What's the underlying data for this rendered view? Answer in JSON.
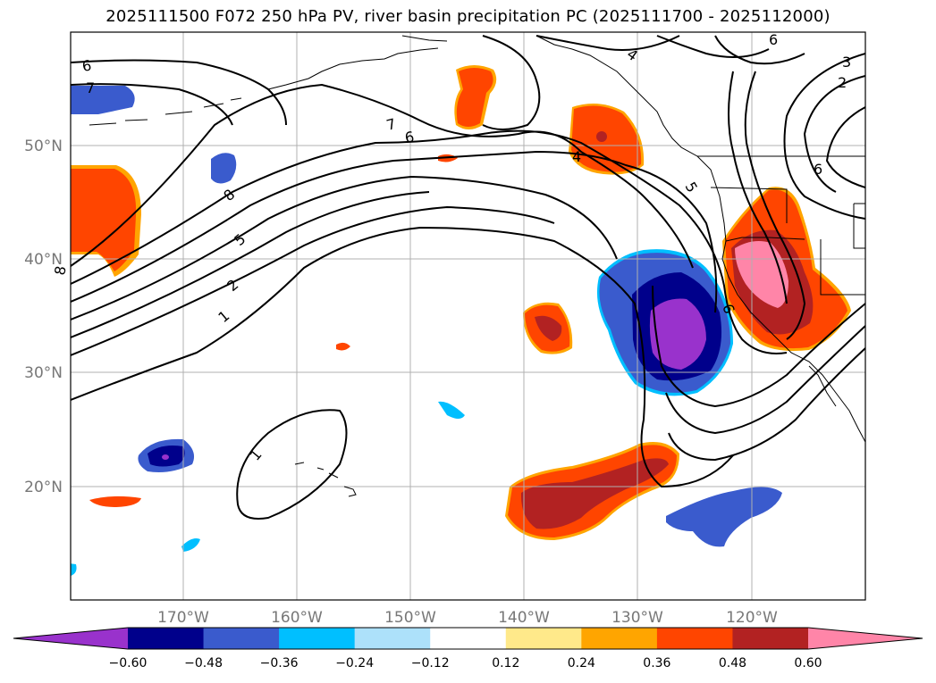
{
  "title": "2025111500 F072 250 hPa PV, river basin precipitation PC (2025111700 - 2025112000)",
  "lat_labels": [
    "50°N",
    "40°N",
    "30°N",
    "20°N"
  ],
  "lon_labels": [
    "170°W",
    "160°W",
    "150°W",
    "140°W",
    "130°W",
    "120°W"
  ],
  "colorbar": {
    "colors": [
      "#9932CC",
      "#00008B",
      "#3A5BCD",
      "#00BFFF",
      "#ADE1FA",
      "#FFFFFF",
      "#FFE98A",
      "#FFA500",
      "#FF4500",
      "#B22222",
      "#FF85A8"
    ],
    "tick_labels": [
      "−0.60",
      "−0.48",
      "−0.36",
      "−0.24",
      "−0.12",
      "0.12",
      "0.24",
      "0.36",
      "0.48",
      "0.60"
    ]
  },
  "contour_labels": [
    "6",
    "7",
    "6",
    "7",
    "6",
    "4",
    "6",
    "3",
    "2",
    "4",
    "5",
    "8",
    "5",
    "2",
    "1",
    "8",
    "1",
    "6"
  ]
}
